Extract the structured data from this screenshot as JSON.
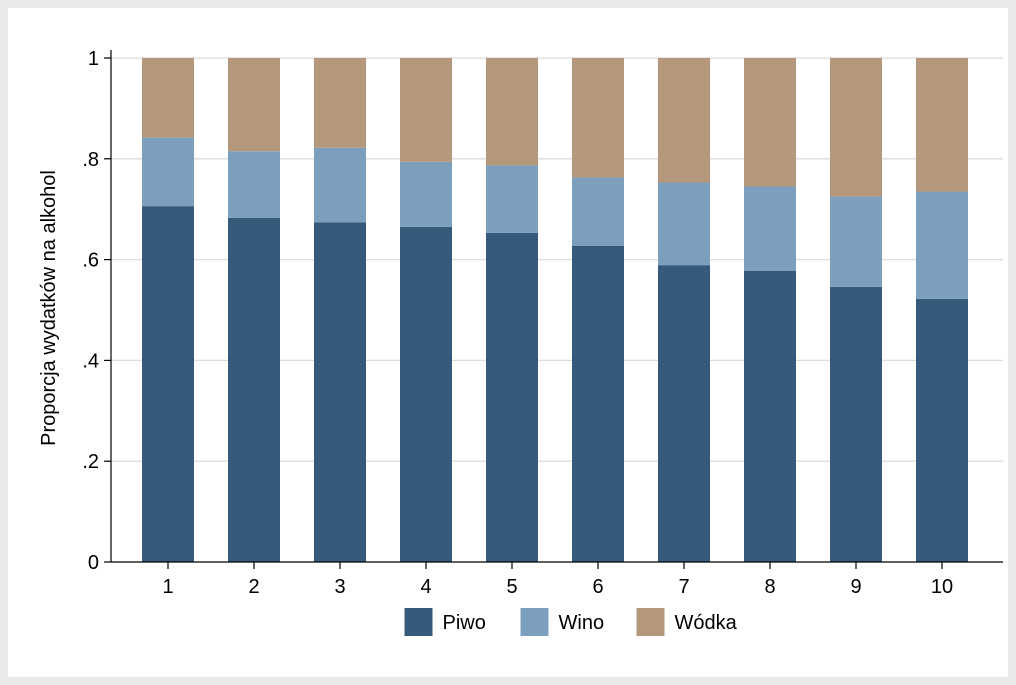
{
  "chart_data": {
    "type": "bar",
    "stacked": true,
    "categories": [
      "1",
      "2",
      "3",
      "4",
      "5",
      "6",
      "7",
      "8",
      "9",
      "10"
    ],
    "series": [
      {
        "name": "Piwo",
        "color": "#365a7b",
        "values": [
          0.706,
          0.683,
          0.674,
          0.665,
          0.653,
          0.627,
          0.589,
          0.578,
          0.546,
          0.522
        ]
      },
      {
        "name": "Wino",
        "color": "#7d9fbe",
        "values": [
          0.136,
          0.132,
          0.148,
          0.129,
          0.134,
          0.136,
          0.164,
          0.167,
          0.179,
          0.213
        ]
      },
      {
        "name": "Wódka",
        "color": "#b5987c",
        "values": [
          0.158,
          0.185,
          0.178,
          0.206,
          0.213,
          0.237,
          0.247,
          0.255,
          0.275,
          0.265
        ]
      }
    ],
    "ylabel": "Proporcja wydatków na alkohol",
    "xlabel": "",
    "ylim": [
      0,
      1
    ],
    "yticks": [
      {
        "value": 0,
        "label": "0"
      },
      {
        "value": 0.2,
        "label": ".2"
      },
      {
        "value": 0.4,
        "label": ".4"
      },
      {
        "value": 0.6,
        "label": ".6"
      },
      {
        "value": 0.8,
        "label": ".8"
      },
      {
        "value": 1,
        "label": "1"
      }
    ],
    "grid": true,
    "legend_position": "bottom"
  }
}
